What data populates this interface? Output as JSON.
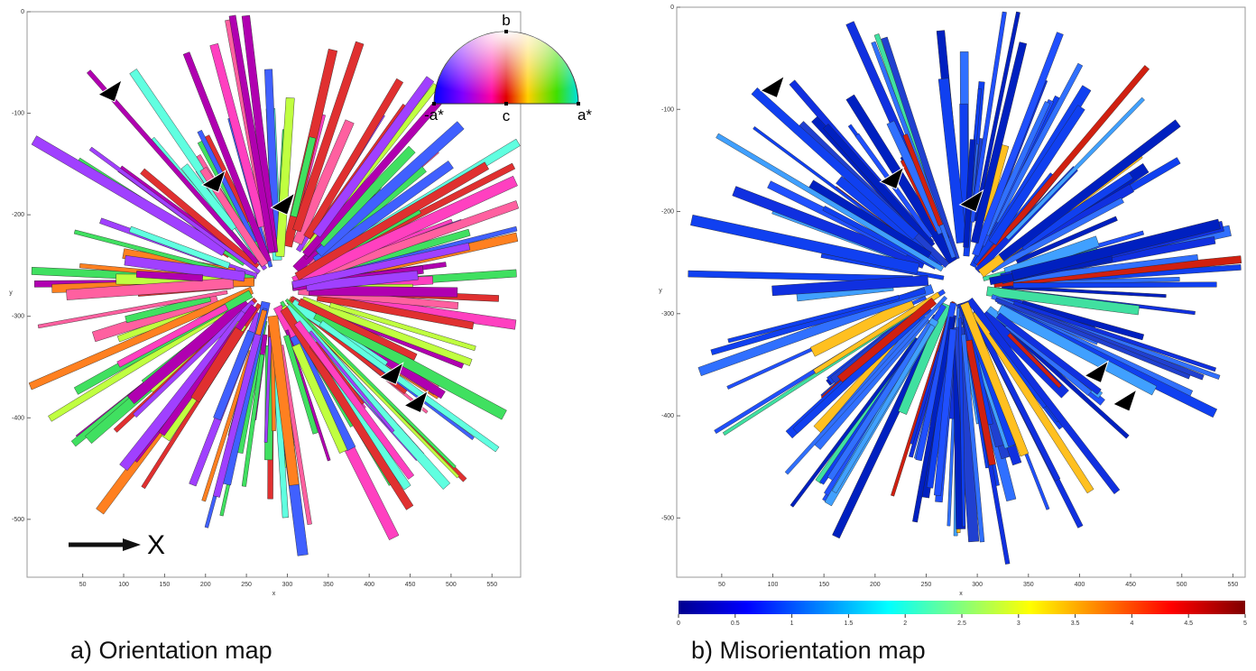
{
  "panels": [
    {
      "caption": "a) Orientation map",
      "x_label": "x",
      "y_label": "y",
      "xlim": [
        -18,
        585
      ],
      "ylim": [
        -557,
        0
      ],
      "xticks": [
        50,
        100,
        150,
        200,
        250,
        300,
        350,
        400,
        450,
        500,
        550
      ],
      "yticks": [
        0,
        -100,
        -200,
        -300,
        -400,
        -500
      ]
    },
    {
      "caption": "b) Misorientation map",
      "x_label": "x",
      "y_label": "y",
      "xlim": [
        6,
        562
      ],
      "ylim": [
        -558,
        0
      ],
      "xticks": [
        50,
        100,
        150,
        200,
        250,
        300,
        350,
        400,
        450,
        500,
        550
      ],
      "yticks": [
        0,
        -100,
        -200,
        -300,
        -400,
        -500
      ]
    }
  ],
  "color_key": {
    "top": "b",
    "left": "-a*",
    "center": "c",
    "right": "a*"
  },
  "direction_label": "X",
  "colorbar": {
    "lim": [
      0,
      5
    ],
    "ticks": [
      0,
      0.5,
      1,
      1.5,
      2,
      2.5,
      3,
      3.5,
      4,
      4.5,
      5
    ]
  }
}
